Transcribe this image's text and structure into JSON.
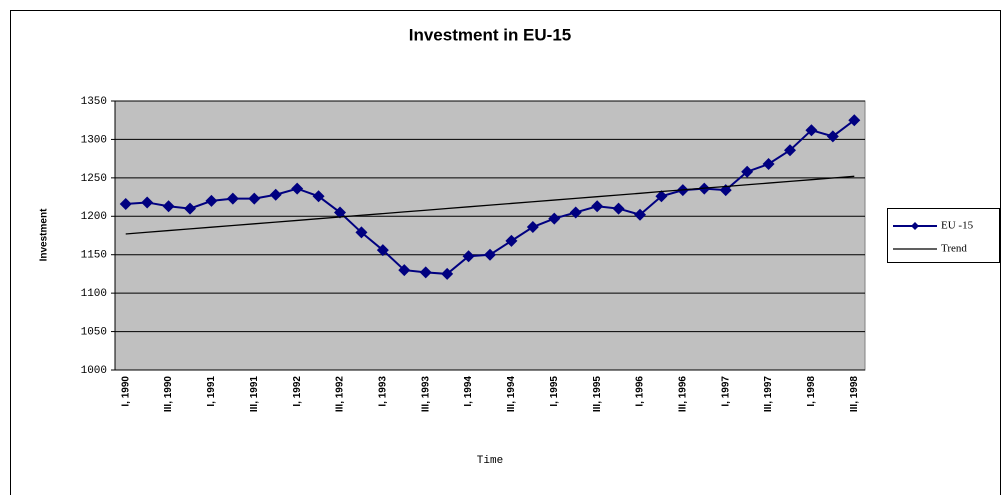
{
  "chart_data": {
    "type": "line",
    "title": "Investment in EU-15",
    "x_label": "Time",
    "y_label": "Investment",
    "categories": [
      "I, 1990",
      null,
      "III, 1990",
      null,
      "I, 1991",
      null,
      "III, 1991",
      null,
      "I, 1992",
      null,
      "III, 1992",
      null,
      "I, 1993",
      null,
      "III, 1993",
      null,
      "I, 1994",
      null,
      "III, 1994",
      null,
      "I, 1995",
      null,
      "III, 1995",
      null,
      "I, 1996",
      null,
      "III, 1996",
      null,
      "I, 1997",
      null,
      "III, 1997",
      null,
      "I, 1998",
      null,
      "III, 1998"
    ],
    "series": [
      {
        "name": "EU -15",
        "color": "#000080",
        "marker": "diamond",
        "values": [
          1216,
          1218,
          1213,
          1210,
          1220,
          1223,
          1223,
          1228,
          1236,
          1226,
          1205,
          1179,
          1156,
          1130,
          1127,
          1125,
          1148,
          1150,
          1168,
          1186,
          1197,
          1205,
          1213,
          1210,
          1202,
          1226,
          1234,
          1236,
          1234,
          1258,
          1268,
          1286,
          1312,
          1304,
          1325
        ]
      },
      {
        "name": "Trend",
        "color": "#000000",
        "values": [
          1177.0,
          1179.2,
          1181.4,
          1183.6,
          1185.8,
          1188.0,
          1190.2,
          1192.4,
          1194.6,
          1196.9,
          1199.1,
          1201.3,
          1203.5,
          1205.7,
          1207.9,
          1210.1,
          1212.3,
          1214.5,
          1216.7,
          1218.9,
          1221.1,
          1223.3,
          1225.5,
          1227.7,
          1229.9,
          1232.2,
          1234.4,
          1236.6,
          1238.8,
          1241.0,
          1243.2,
          1245.4,
          1247.6,
          1249.8,
          1252.0
        ]
      }
    ],
    "ylim": [
      1000,
      1350
    ],
    "yticks": [
      1000,
      1050,
      1100,
      1150,
      1200,
      1250,
      1300,
      1350
    ],
    "grid": true,
    "legend": "right"
  }
}
